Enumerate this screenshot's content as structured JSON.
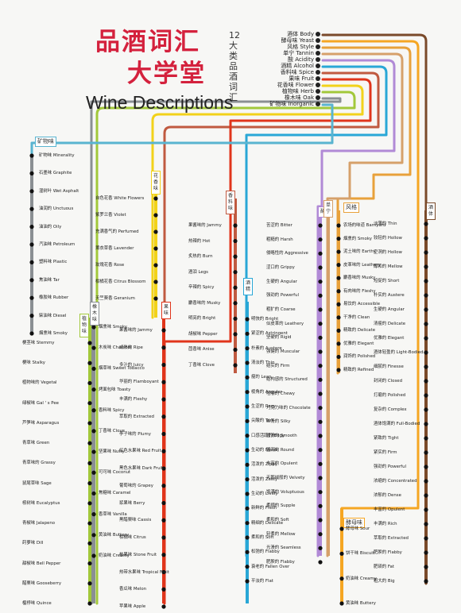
{
  "title_cn": "品酒词汇大学堂",
  "title_cn_top": "品酒词汇",
  "title_cn_bottom": "大学堂",
  "subtitle_cn": "12大类品酒词汇",
  "title_en": "Wine Descriptions",
  "categories": [
    {
      "label": "酒体 Body",
      "color": "#7a4a2a"
    },
    {
      "label": "酵母味 Yeast",
      "color": "#f5a623"
    },
    {
      "label": "风格 Style",
      "color": "#e8a13a"
    },
    {
      "label": "单宁 Tannin",
      "color": "#d6a06a"
    },
    {
      "label": "酸 Acidity",
      "color": "#b18ad6"
    },
    {
      "label": "酒精 Alcohol",
      "color": "#29a7d6"
    },
    {
      "label": "香料味 Spice",
      "color": "#c05a40"
    },
    {
      "label": "果味 Fruit",
      "color": "#e0351b"
    },
    {
      "label": "花香味 Flower",
      "color": "#f2d21a"
    },
    {
      "label": "植物味 Herb",
      "color": "#a2c83a"
    },
    {
      "label": "橡木味 Oak",
      "color": "#8a8f93"
    },
    {
      "label": "矿物味 Inorganic",
      "color": "#59b4d0"
    }
  ],
  "line_tags": {
    "inorganic": "矿物味",
    "herb": "植物味",
    "oak": "橡木味",
    "flower": "花香味",
    "fruit": "果味",
    "spice": "香料味",
    "alcohol": "酒精",
    "acidity": "酸",
    "tannin": "单宁",
    "style": "风格",
    "body": "酒体",
    "yeast": "酵母味"
  },
  "col1": [
    "矿物味 Minerality",
    "石墨味 Graphite",
    "湿树叶 Wet Asphalt",
    "油润的 Unctuous",
    "油油的 Oily",
    "汽油味 Petroleum",
    "塑料味 Plastic",
    "焦油味 Tar",
    "橡胶味 Rubber",
    "柴油味 Diesel",
    "烟熏味 Smoky"
  ],
  "col2": [
    "梗茎味 Stemmy",
    "梗味 Stalky",
    "植物味的 Vegetal",
    "绿椒味 Gal ' s Pee",
    "芦笋味 Asparagus",
    "青草味 Green",
    "青草味的 Grassy",
    "鼠尾草味 Sage",
    "桉树味 Eucalyptus",
    "青椒味 Jalapeno",
    "莳萝味 Dill",
    "甜椒味 Bell Pepper",
    "醋栗味 Gooseberry",
    "榅桲味 Quince"
  ],
  "col3": [
    "烟熏味 Smoky",
    "木炭味 Charcoal",
    "烟草味 Sweet Tobacco",
    "烤面包味 Toasty",
    "香料味 Spicy",
    "丁香味 Clove",
    "坚果味 Nutty",
    "可可味 Coconut",
    "焦糖味 Caramel",
    "香草味 Vanilla",
    "黄油味 Buttery",
    "奶油味 Creamy"
  ],
  "col4": [
    "自色花香 White Flowers",
    "紫罗兰香 Violet",
    "充满香气的 Perfumed",
    "薰衣草香 Lavender",
    "玫瑰花香 Rose",
    "柑橘花香 Citrus Blossom",
    "天竺葵香 Geranium"
  ],
  "col5": [
    "果酱味的 Jammy",
    "成熟的 Ripe",
    "多汁的 Juicy",
    "华丽的 Flamboyant",
    "丰满的 Fleshy",
    "萃取的 Extracted",
    "李子味的 Plumy",
    "红色水果味 Red Fruit",
    "黑色水果味 Dark Fruit",
    "葡萄味的 Grapey",
    "浆果味 Berry",
    "黑醋栗味 Cassis",
    "柑橘味 Citrus",
    "核果味 Stone Fruit",
    "热带水果味 Tropical Fruit",
    "香瓜味 Melon",
    "苹果味 Apple"
  ],
  "col6": [
    "果酱味的 Jammy",
    "热辣的 Hot",
    "炙热的 Burn",
    "酒泪 Legs",
    "辛辣的 Spicy",
    "麝香味的 Musky",
    "明亮的 Bright",
    "胡椒味 Pepper",
    "茴香味 Anise",
    "丁香味 Clove"
  ],
  "col7": [
    "明快的 Bright",
    "紧涩的 Astringent",
    "朴素的 Austere",
    "清淡的 Thin",
    "瘦的 Lean",
    "棱角的 Angular",
    "生涩的 Racy",
    "尖酸的 Tart",
    "口感活跃的 Edgy",
    "生动的 Nerve",
    "活泼的 Zippy",
    "活泼的 Zesty",
    "生动的 Lively",
    "新鲜的 Fresh",
    "精细的 Delicate",
    "柔和的 Soft",
    "松弛的 Flabby",
    "衰老的 Fallen Over",
    "平淡的 Flat"
  ],
  "col8": [
    "苦涩的 Bitter",
    "粗糙的 Harsh",
    "侵略性的 Aggressive",
    "涩口的 Grippy",
    "生硬的 Angular",
    "强劲的 Powerful",
    "粗犷的 Coarse",
    "似皮革的 Leathery",
    "坚硬的 Rigid",
    "强健的 Muscular",
    "结实的 Firm",
    "结构感的 Structured",
    "咀嚼的 Chewy",
    "巧克力味的 Chocolate",
    "丝滑的 Silky",
    "圆滑的 Smooth",
    "圆润的 Round",
    "丰富的 Opulent",
    "天鹅绒般的 Velvety",
    "饱满的 Voluptuous",
    "柔顺的 Supple",
    "柔和的 Soft",
    "轻柔的 Mellow",
    "光滑的 Seamless",
    "肥腴的 Flabby"
  ],
  "col9": [
    "农场的味道 Barnyard",
    "烟熏的 Smoky",
    "泥土味的 Earthy",
    "皮革味的 Leathery",
    "麝香味的 Musky",
    "有肉味的 Fleshy",
    "易饮的 Accessible",
    "干净的 Clean",
    "精致的 Delicate",
    "优雅的 Elegant",
    "润饰的 Polished",
    "精致的 Refined"
  ],
  "col10": [
    "酵母味 Sour",
    "饼干味 Biscuit",
    "奶油味 Creamy",
    "黄油味 Buttery"
  ],
  "col11": [
    "淡薄的 Thin",
    "较轻的 Hollow",
    "空洞的 Hollow",
    "醇和的 Mellow",
    "短促的 Short",
    "朴实的 Austere",
    "生硬的 Angular",
    "清瘦的 Delicate",
    "优雅的 Elegant",
    "酒体轻盈的 Light-Bodied",
    "细腻的 Finesse",
    "封闭的 Closed",
    "打磨的 Polished",
    "复杂的 Complex",
    "酒体饱满的 Full-Bodied",
    "紧致的 Tight",
    "紧实的 Firm",
    "强劲的 Powerful",
    "浓缩的 Concentrated",
    "浓郁的 Dense",
    "丰富的 Opulent",
    "丰满的 Rich",
    "萃取的 Extracted",
    "肥腴的 Flabby",
    "肥硕的 Fat",
    "粗大的 Big"
  ]
}
